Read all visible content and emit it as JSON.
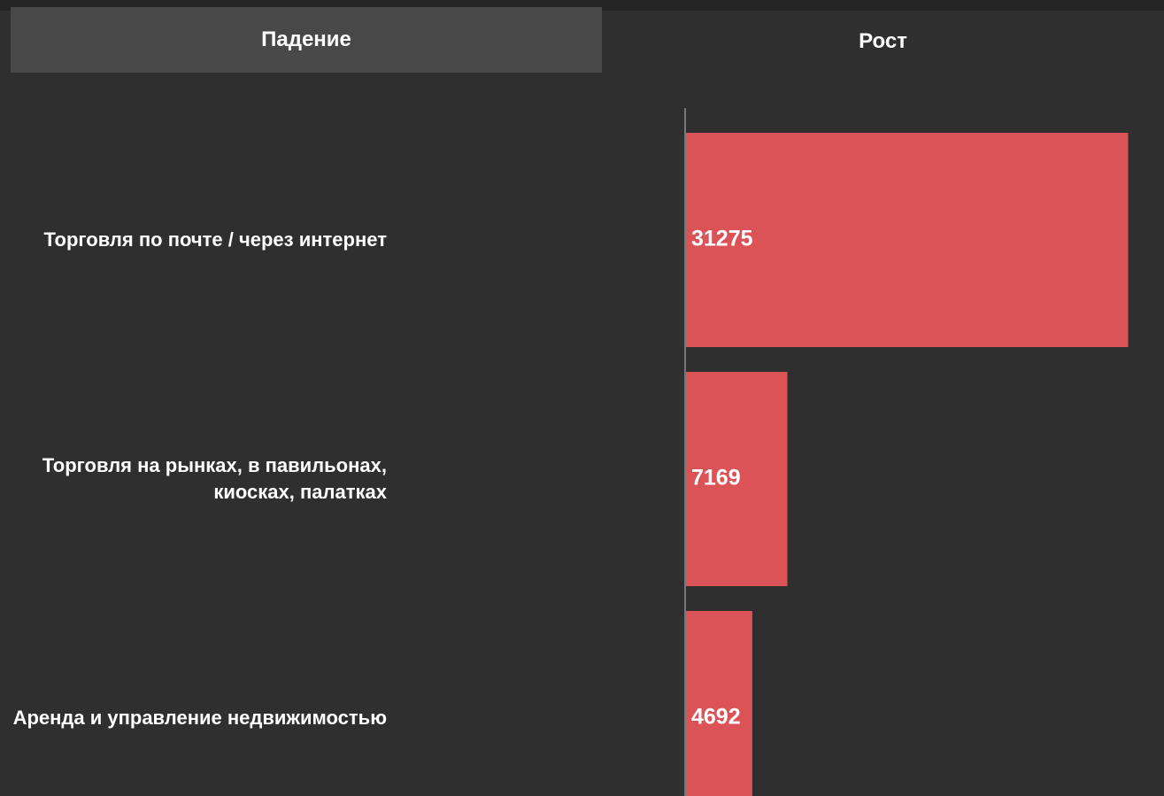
{
  "tabs": [
    "Падение",
    "Рост"
  ],
  "chart_data": {
    "type": "bar",
    "orientation": "horizontal",
    "categories": [
      "Торговля по почте / через интернет",
      "Торговля на рынках, в павильонах, киосках, палатках",
      "Аренда и управление недвижимостью"
    ],
    "values": [
      31275,
      7169,
      4692
    ],
    "color": "#db5356",
    "xlim": [
      0,
      33000
    ]
  }
}
